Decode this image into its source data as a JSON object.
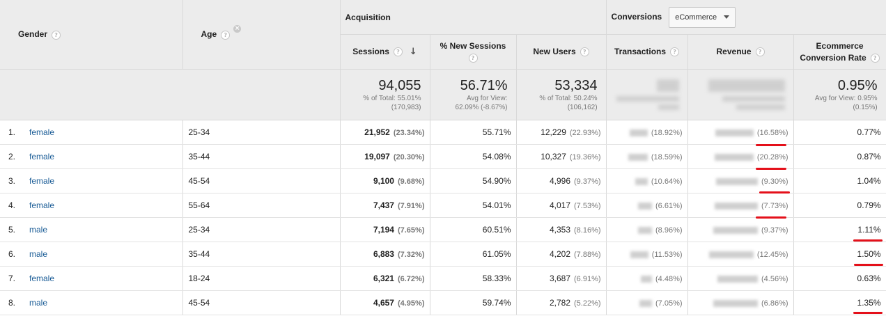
{
  "headers": {
    "gender": "Gender",
    "age": "Age",
    "acquisition": "Acquisition",
    "conversions": "Conversions",
    "conversions_dropdown": "eCommerce",
    "sessions": "Sessions",
    "new_sessions": "% New Sessions",
    "new_users": "New Users",
    "transactions": "Transactions",
    "revenue": "Revenue",
    "ecr_line1": "Ecommerce",
    "ecr_line2": "Conversion Rate"
  },
  "totals": {
    "sessions": "94,055",
    "sessions_sub1": "% of Total: 55.01%",
    "sessions_sub2": "(170,983)",
    "new_sessions": "56.71%",
    "new_sessions_sub1": "Avg for View:",
    "new_sessions_sub2": "62.09% (-8.67%)",
    "new_users": "53,334",
    "new_users_sub1": "% of Total: 50.24%",
    "new_users_sub2": "(106,162)",
    "ecr": "0.95%",
    "ecr_sub1": "Avg for View: 0.95%",
    "ecr_sub2": "(0.15%)"
  },
  "rows": [
    {
      "num": "1.",
      "gender": "female",
      "age": "25-34",
      "sessions": "21,952",
      "sessions_pct": "(23.34%)",
      "new_sessions": "55.71%",
      "new_users": "12,229",
      "new_users_pct": "(22.93%)",
      "tx_pct": "(18.92%)",
      "rev_pct": "(16.58%)",
      "ecr": "0.77%"
    },
    {
      "num": "2.",
      "gender": "female",
      "age": "35-44",
      "sessions": "19,097",
      "sessions_pct": "(20.30%)",
      "new_sessions": "54.08%",
      "new_users": "10,327",
      "new_users_pct": "(19.36%)",
      "tx_pct": "(18.59%)",
      "rev_pct": "(20.28%)",
      "ecr": "0.87%"
    },
    {
      "num": "3.",
      "gender": "female",
      "age": "45-54",
      "sessions": "9,100",
      "sessions_pct": "(9.68%)",
      "new_sessions": "54.90%",
      "new_users": "4,996",
      "new_users_pct": "(9.37%)",
      "tx_pct": "(10.64%)",
      "rev_pct": "(9.30%)",
      "ecr": "1.04%"
    },
    {
      "num": "4.",
      "gender": "female",
      "age": "55-64",
      "sessions": "7,437",
      "sessions_pct": "(7.91%)",
      "new_sessions": "54.01%",
      "new_users": "4,017",
      "new_users_pct": "(7.53%)",
      "tx_pct": "(6.61%)",
      "rev_pct": "(7.73%)",
      "ecr": "0.79%"
    },
    {
      "num": "5.",
      "gender": "male",
      "age": "25-34",
      "sessions": "7,194",
      "sessions_pct": "(7.65%)",
      "new_sessions": "60.51%",
      "new_users": "4,353",
      "new_users_pct": "(8.16%)",
      "tx_pct": "(8.96%)",
      "rev_pct": "(9.37%)",
      "ecr": "1.11%"
    },
    {
      "num": "6.",
      "gender": "male",
      "age": "35-44",
      "sessions": "6,883",
      "sessions_pct": "(7.32%)",
      "new_sessions": "61.05%",
      "new_users": "4,202",
      "new_users_pct": "(7.88%)",
      "tx_pct": "(11.53%)",
      "rev_pct": "(12.45%)",
      "ecr": "1.50%"
    },
    {
      "num": "7.",
      "gender": "female",
      "age": "18-24",
      "sessions": "6,321",
      "sessions_pct": "(6.72%)",
      "new_sessions": "58.33%",
      "new_users": "3,687",
      "new_users_pct": "(6.91%)",
      "tx_pct": "(4.48%)",
      "rev_pct": "(4.56%)",
      "ecr": "0.63%"
    },
    {
      "num": "8.",
      "gender": "male",
      "age": "45-54",
      "sessions": "4,657",
      "sessions_pct": "(4.95%)",
      "new_sessions": "59.74%",
      "new_users": "2,782",
      "new_users_pct": "(5.22%)",
      "tx_pct": "(7.05%)",
      "rev_pct": "(6.86%)",
      "ecr": "1.35%"
    }
  ],
  "icons": {
    "help": "question-icon",
    "remove": "close-icon",
    "sort": "arrow-down-icon",
    "dropdown": "caret-down-icon"
  },
  "colors": {
    "link": "#1a5c96",
    "highlight": "#e4101a",
    "header_bg": "#ececec"
  }
}
